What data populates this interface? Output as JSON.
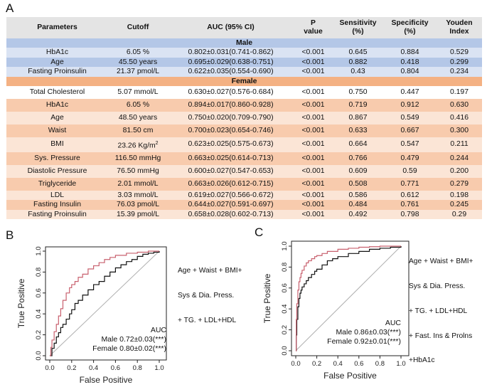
{
  "panel_a": {
    "letter": "A",
    "headers": {
      "parameters": "Parameters",
      "cutoff": "Cutoff",
      "auc": "AUC (95% CI)",
      "p_line1": "P",
      "p_line2": "value",
      "sens_line1": "Sensitivity",
      "sens_line2": "(%)",
      "spec_line1": "Specificity",
      "spec_line2": "(%)",
      "youden_line1": "Youden",
      "youden_line2": "Index"
    },
    "male_label": "Male",
    "female_label": "Female",
    "male_rows": [
      {
        "param": "HbA1c",
        "cutoff": "6.05 %",
        "auc": "0.802±0.031(0.741-0.862)",
        "p": "<0.001",
        "sens": "0.645",
        "spec": "0.884",
        "youden": "0.529"
      },
      {
        "param": "Age",
        "cutoff": "45.50 years",
        "auc": "0.695±0.029(0.638-0.751)",
        "p": "<0.001",
        "sens": "0.882",
        "spec": "0.418",
        "youden": "0.299"
      },
      {
        "param": "Fasting Proinsulin",
        "cutoff": "21.37 pmol/L",
        "auc": "0.622±0.035(0.554-0.690)",
        "p": "<0.001",
        "sens": "0.43",
        "spec": "0.804",
        "youden": "0.234"
      }
    ],
    "female_rows": [
      {
        "param": "Total Cholesterol",
        "cutoff": "5.07 mmol/L",
        "auc": "0.630±0.027(0.576-0.684)",
        "p": "<0.001",
        "sens": "0.750",
        "spec": "0.447",
        "youden": "0.197"
      },
      {
        "param": "HbA1c",
        "cutoff": "6.05 %",
        "auc": "0.894±0.017(0.860-0.928)",
        "p": "<0.001",
        "sens": "0.719",
        "spec": "0.912",
        "youden": "0.630"
      },
      {
        "param": "Age",
        "cutoff": "48.50 years",
        "auc": "0.750±0.020(0.709-0.790)",
        "p": "<0.001",
        "sens": "0.867",
        "spec": "0.549",
        "youden": "0.416"
      },
      {
        "param": "Waist",
        "cutoff": "81.50 cm",
        "auc": "0.700±0.023(0.654-0.746)",
        "p": "<0.001",
        "sens": "0.633",
        "spec": "0.667",
        "youden": "0.300"
      },
      {
        "param": "BMI",
        "cutoff_value": "23.26 Kg/m",
        "cutoff_sup": "2",
        "auc": "0.623±0.025(0.575-0.673)",
        "p": "<0.001",
        "sens": "0.664",
        "spec": "0.547",
        "youden": "0.211"
      },
      {
        "param": "Sys. Pressure",
        "cutoff": "116.50 mmHg",
        "auc": "0.663±0.025(0.614-0.713)",
        "p": "<0.001",
        "sens": "0.766",
        "spec": "0.479",
        "youden": "0.244"
      },
      {
        "param": "Diastolic Pressure",
        "cutoff": "76.50 mmHg",
        "auc": "0.600±0.027(0.547-0.653)",
        "p": "<0.001",
        "sens": "0.609",
        "spec": "0.59",
        "youden": "0.200"
      },
      {
        "param": "Triglyceride",
        "cutoff": "2.01 mmol/L",
        "auc": "0.663±0.026(0.612-0.715)",
        "p": "<0.001",
        "sens": "0.508",
        "spec": "0.771",
        "youden": "0.279"
      },
      {
        "param": "LDL",
        "cutoff": "3.03 mmol/L",
        "auc": "0.619±0.027(0.566-0.672)",
        "p": "<0.001",
        "sens": "0.586",
        "spec": "0.612",
        "youden": "0.198"
      },
      {
        "param": "Fasting Insulin",
        "cutoff": "76.03 pmol/L",
        "auc": "0.644±0.027(0.591-0.697)",
        "p": "<0.001",
        "sens": "0.484",
        "spec": "0.761",
        "youden": "0.245"
      },
      {
        "param": "Fasting Proinsulin",
        "cutoff": "15.39 pmol/L",
        "auc": "0.658±0.028(0.602-0.713)",
        "p": "<0.001",
        "sens": "0.492",
        "spec": "0.798",
        "youden": "0.29"
      }
    ]
  },
  "panel_b": {
    "letter": "B",
    "predictors_lines": [
      "Age + Waist + BMI+",
      "Sys & Dia. Press.",
      "+ TG. + LDL+HDL"
    ]
  },
  "panel_c": {
    "letter": "C",
    "predictors_lines": [
      "Age + Waist + BMI+",
      "Sys & Dia. Press.",
      "+ TG. + LDL+HDL",
      "+ Fast. Ins & Prolns",
      "+HbA1c"
    ]
  },
  "colors": {
    "male_curve": "#111111",
    "female_curve": "#c8606e",
    "female_text": "#e03030",
    "diagonal": "#b0b0b0"
  },
  "chart_data": [
    {
      "type": "line",
      "panel": "B",
      "xlabel": "False Positive",
      "ylabel": "True Positive",
      "xlim": [
        0,
        1
      ],
      "ylim": [
        0,
        1
      ],
      "ticks": [
        "0.0",
        "0.2",
        "0.4",
        "0.6",
        "0.8",
        "1.0"
      ],
      "legend_title": "AUC",
      "series": [
        {
          "name": "Male",
          "label": "Male 0.72±0.03(***)",
          "color": "#111111",
          "x": [
            0,
            0.02,
            0.04,
            0.06,
            0.08,
            0.1,
            0.12,
            0.15,
            0.18,
            0.2,
            0.23,
            0.26,
            0.3,
            0.35,
            0.4,
            0.45,
            0.5,
            0.55,
            0.6,
            0.65,
            0.7,
            0.75,
            0.8,
            0.85,
            0.9,
            0.95,
            1.0
          ],
          "y": [
            0,
            0.07,
            0.12,
            0.18,
            0.22,
            0.27,
            0.3,
            0.35,
            0.4,
            0.44,
            0.5,
            0.53,
            0.58,
            0.63,
            0.68,
            0.71,
            0.76,
            0.8,
            0.84,
            0.87,
            0.9,
            0.92,
            0.95,
            0.97,
            0.98,
            0.99,
            1.0
          ]
        },
        {
          "name": "Female",
          "label": "Female 0.80±0.02(***)",
          "color": "#c8606e",
          "x": [
            0,
            0.01,
            0.02,
            0.04,
            0.06,
            0.08,
            0.1,
            0.12,
            0.15,
            0.18,
            0.2,
            0.23,
            0.26,
            0.3,
            0.35,
            0.4,
            0.45,
            0.5,
            0.55,
            0.6,
            0.7,
            0.8,
            0.9,
            1.0
          ],
          "y": [
            0,
            0.08,
            0.15,
            0.23,
            0.3,
            0.38,
            0.45,
            0.53,
            0.6,
            0.65,
            0.68,
            0.71,
            0.75,
            0.78,
            0.83,
            0.86,
            0.89,
            0.92,
            0.94,
            0.96,
            0.98,
            0.99,
            1.0,
            1.0
          ]
        }
      ]
    },
    {
      "type": "line",
      "panel": "C",
      "xlabel": "False Positive",
      "ylabel": "True Positive",
      "xlim": [
        0,
        1
      ],
      "ylim": [
        0,
        1
      ],
      "ticks": [
        "0.0",
        "0.2",
        "0.4",
        "0.6",
        "0.8",
        "1.0"
      ],
      "legend_title": "AUC",
      "series": [
        {
          "name": "Male",
          "label": "Male 0.86±0.03(***)",
          "color": "#111111",
          "x": [
            0,
            0.005,
            0.01,
            0.02,
            0.03,
            0.04,
            0.05,
            0.06,
            0.08,
            0.1,
            0.12,
            0.15,
            0.18,
            0.2,
            0.25,
            0.3,
            0.35,
            0.4,
            0.5,
            0.6,
            0.7,
            0.8,
            0.9,
            1.0
          ],
          "y": [
            0,
            0.15,
            0.3,
            0.42,
            0.5,
            0.55,
            0.58,
            0.61,
            0.64,
            0.67,
            0.7,
            0.73,
            0.76,
            0.78,
            0.82,
            0.86,
            0.88,
            0.9,
            0.93,
            0.95,
            0.97,
            0.98,
            0.99,
            1.0
          ]
        },
        {
          "name": "Female",
          "label": "Female 0.92±0.01(***)",
          "color": "#c8606e",
          "x": [
            0,
            0.005,
            0.01,
            0.02,
            0.03,
            0.04,
            0.05,
            0.06,
            0.08,
            0.1,
            0.12,
            0.15,
            0.18,
            0.2,
            0.25,
            0.3,
            0.4,
            0.5,
            0.6,
            0.7,
            0.8,
            0.9,
            1.0
          ],
          "y": [
            0,
            0.3,
            0.45,
            0.58,
            0.66,
            0.7,
            0.74,
            0.77,
            0.81,
            0.84,
            0.86,
            0.88,
            0.9,
            0.91,
            0.93,
            0.95,
            0.97,
            0.98,
            0.99,
            0.995,
            1.0,
            1.0,
            1.0
          ]
        }
      ]
    }
  ]
}
